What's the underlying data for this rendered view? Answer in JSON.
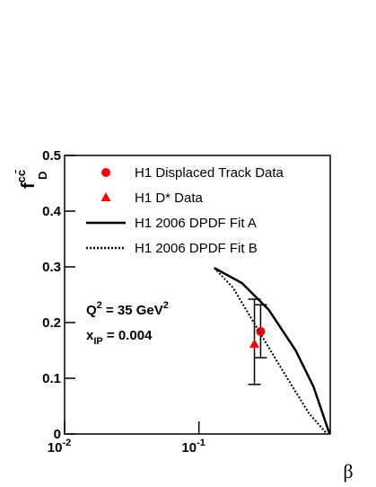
{
  "chart_data": {
    "type": "scatter",
    "y_label": {
      "base": "f",
      "superscript": "cc̄",
      "subscript": "D"
    },
    "x_label": "β",
    "xscale": "log",
    "xlim": [
      0.01,
      0.95
    ],
    "ylim": [
      0,
      0.5
    ],
    "xticks": [
      {
        "value": 0.01,
        "label": "10",
        "exponent": "-2"
      },
      {
        "value": 0.1,
        "label": "10",
        "exponent": "-1"
      }
    ],
    "yticks": [
      0,
      0.1,
      0.2,
      0.3,
      0.4,
      0.5
    ],
    "legend": "top-right",
    "annotations": [
      [
        {
          "text": "Q"
        },
        {
          "text": "2",
          "sup": true
        },
        {
          "text": " = 35 GeV"
        },
        {
          "text": "2",
          "sup": true
        }
      ],
      [
        {
          "text": "x"
        },
        {
          "text": "IP",
          "sub": true
        },
        {
          "text": " = 0.004"
        }
      ]
    ],
    "series": [
      {
        "name": "H1 Displaced Track Data",
        "kind": "points",
        "marker": "circle",
        "color": "#ff0000",
        "x": [
          0.288
        ],
        "values": [
          0.184
        ],
        "error_low": [
          0.047
        ],
        "error_high": [
          0.048
        ]
      },
      {
        "name": "H1 D* Data",
        "kind": "points",
        "marker": "triangle",
        "color": "#ff0000",
        "x": [
          0.259
        ],
        "values": [
          0.161
        ],
        "error_low": [
          0.072
        ],
        "error_high": [
          0.081
        ]
      },
      {
        "name": "H1 2006 DPDF Fit A",
        "kind": "line",
        "dash": "solid",
        "color": "#000000",
        "x": [
          0.13,
          0.209,
          0.331,
          0.525,
          0.713,
          0.94
        ],
        "values": [
          0.298,
          0.271,
          0.223,
          0.15,
          0.085,
          0
        ]
      },
      {
        "name": "H1 2006 DPDF Fit B",
        "kind": "line",
        "dash": "dotted",
        "color": "#000000",
        "x": [
          0.13,
          0.179,
          0.284,
          0.45,
          0.66,
          0.9
        ],
        "values": [
          0.298,
          0.263,
          0.182,
          0.102,
          0.037,
          0
        ]
      }
    ]
  }
}
